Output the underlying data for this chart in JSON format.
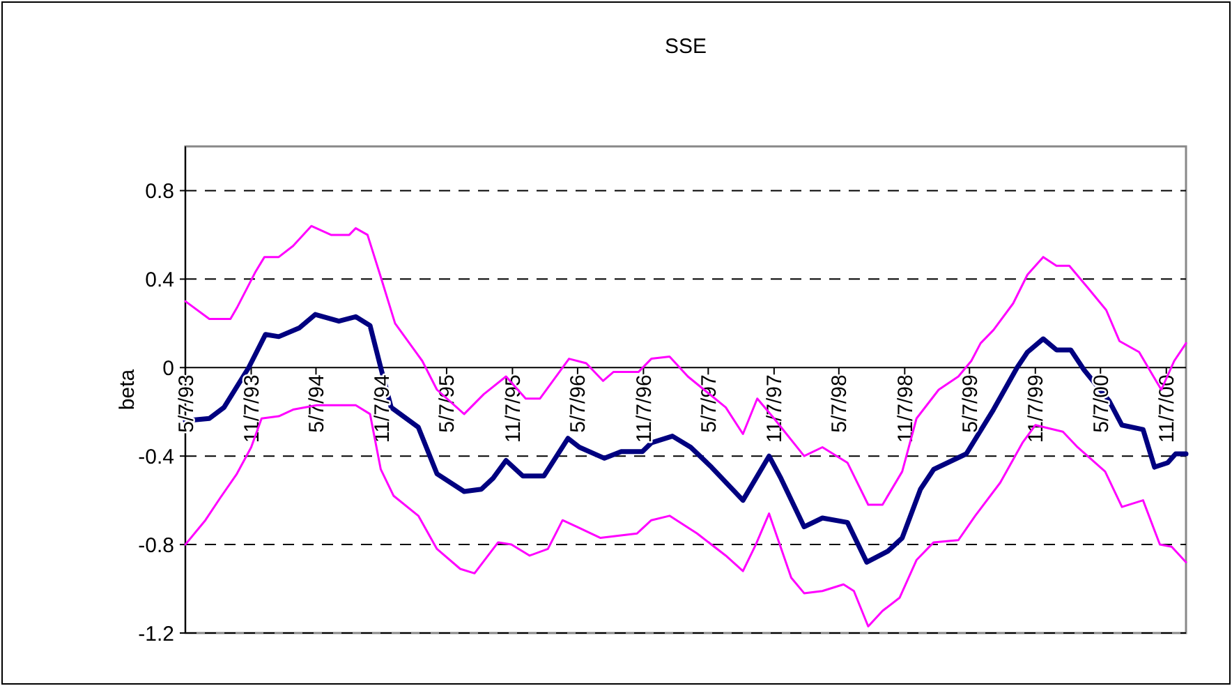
{
  "chart_data": {
    "type": "line",
    "title": "SSE",
    "ylabel": "beta",
    "xlim": [
      "1993-05-07",
      "2001-01-01"
    ],
    "xticks": [
      {
        "value": "1993-05-07",
        "label": "5/7/93"
      },
      {
        "value": "1993-11-07",
        "label": "11/7/93"
      },
      {
        "value": "1994-05-07",
        "label": "5/7/94"
      },
      {
        "value": "1994-11-07",
        "label": "11/7/94"
      },
      {
        "value": "1995-05-07",
        "label": "5/7/95"
      },
      {
        "value": "1995-11-07",
        "label": "11/7/95"
      },
      {
        "value": "1996-05-07",
        "label": "5/7/96"
      },
      {
        "value": "1996-11-07",
        "label": "11/7/96"
      },
      {
        "value": "1997-05-07",
        "label": "5/7/97"
      },
      {
        "value": "1997-11-07",
        "label": "11/7/97"
      },
      {
        "value": "1998-05-07",
        "label": "5/7/98"
      },
      {
        "value": "1998-11-07",
        "label": "11/7/98"
      },
      {
        "value": "1999-05-07",
        "label": "5/7/99"
      },
      {
        "value": "1999-11-07",
        "label": "11/7/99"
      },
      {
        "value": "2000-05-07",
        "label": "5/7/00"
      },
      {
        "value": "2000-11-07",
        "label": "11/7/00"
      }
    ],
    "ylim": [
      -1.2,
      1.0
    ],
    "yticks": [
      -1.2,
      -0.8,
      -0.4,
      0,
      0.4,
      0.8
    ],
    "grid": "y",
    "marker": "none",
    "line_style": "solid",
    "series": [
      {
        "color": "#ff00ff",
        "x": [
          "1993-05-07",
          "1993-07-13",
          "1993-09-10",
          "1993-09-28",
          "1993-11-18",
          "1993-12-14",
          "1994-01-23",
          "1994-03-04",
          "1994-04-24",
          "1994-06-18",
          "1994-08-08",
          "1994-08-26",
          "1994-09-28",
          "1994-11-04",
          "1994-12-14",
          "1995-02-28",
          "1995-04-10",
          "1995-06-25",
          "1995-08-19",
          "1995-10-20",
          "1995-12-14",
          "1996-01-23",
          "1996-04-13",
          "1996-05-31",
          "1996-07-17",
          "1996-08-15",
          "1996-10-24",
          "1996-11-29",
          "1997-01-19",
          "1997-03-11",
          "1997-06-25",
          "1997-08-12",
          "1997-09-21",
          "1997-11-07",
          "1998-01-30",
          "1998-03-22",
          "1998-05-31",
          "1998-07-28",
          "1998-09-06",
          "1998-10-31",
          "1998-12-10",
          "1999-02-10",
          "1999-04-06",
          "1999-05-12",
          "1999-06-07",
          "1999-07-13",
          "1999-09-06",
          "1999-10-16",
          "1999-11-29",
          "2000-01-05",
          "2000-02-10",
          "2000-04-02",
          "2000-05-23",
          "2000-06-29",
          "2000-08-23",
          "2000-10-02",
          "2000-10-24",
          "2000-11-29",
          "2001-01-01"
        ],
        "values": [
          0.3,
          0.22,
          0.22,
          0.27,
          0.43,
          0.5,
          0.5,
          0.55,
          0.64,
          0.6,
          0.6,
          0.63,
          0.6,
          0.41,
          0.2,
          0.03,
          -0.1,
          -0.21,
          -0.12,
          -0.04,
          -0.14,
          -0.14,
          0.04,
          0.02,
          -0.06,
          -0.02,
          -0.02,
          0.04,
          0.05,
          -0.04,
          -0.18,
          -0.3,
          -0.14,
          -0.23,
          -0.4,
          -0.36,
          -0.43,
          -0.62,
          -0.62,
          -0.47,
          -0.23,
          -0.1,
          -0.04,
          0.03,
          0.11,
          0.17,
          0.29,
          0.42,
          0.5,
          0.46,
          0.46,
          0.36,
          0.26,
          0.12,
          0.07,
          -0.04,
          -0.1,
          0.03,
          0.11
        ]
      },
      {
        "color": "#ff00ff",
        "x": [
          "1993-05-07",
          "1993-07-02",
          "1993-08-12",
          "1993-09-28",
          "1993-11-07",
          "1993-12-06",
          "1994-01-23",
          "1994-03-04",
          "1994-05-09",
          "1994-07-10",
          "1994-08-26",
          "1994-10-05",
          "1994-11-04",
          "1994-12-10",
          "1995-02-17",
          "1995-04-10",
          "1995-06-14",
          "1995-07-24",
          "1995-09-28",
          "1995-11-04",
          "1995-12-25",
          "1996-02-14",
          "1996-03-26",
          "1996-05-05",
          "1996-07-10",
          "1996-10-20",
          "1996-11-29",
          "1997-01-19",
          "1997-04-06",
          "1997-06-25",
          "1997-08-12",
          "1997-09-17",
          "1997-10-24",
          "1997-12-25",
          "1998-01-30",
          "1998-03-22",
          "1998-05-20",
          "1998-06-18",
          "1998-07-28",
          "1998-09-06",
          "1998-10-24",
          "1998-12-10",
          "1999-01-27",
          "1999-04-06",
          "1999-05-23",
          "1999-08-01",
          "1999-10-02",
          "1999-11-07",
          "2000-01-23",
          "2000-03-04",
          "2000-05-20",
          "2000-07-06",
          "2000-09-03",
          "2000-10-20",
          "2000-11-22",
          "2001-01-01"
        ],
        "values": [
          -0.8,
          -0.69,
          -0.59,
          -0.48,
          -0.36,
          -0.23,
          -0.22,
          -0.19,
          -0.17,
          -0.17,
          -0.17,
          -0.21,
          -0.46,
          -0.58,
          -0.67,
          -0.82,
          -0.91,
          -0.93,
          -0.79,
          -0.8,
          -0.85,
          -0.82,
          -0.69,
          -0.72,
          -0.77,
          -0.75,
          -0.69,
          -0.67,
          -0.75,
          -0.85,
          -0.92,
          -0.8,
          -0.66,
          -0.95,
          -1.02,
          -1.01,
          -0.98,
          -1.01,
          -1.17,
          -1.1,
          -1.04,
          -0.87,
          -0.79,
          -0.78,
          -0.67,
          -0.52,
          -0.34,
          -0.26,
          -0.29,
          -0.36,
          -0.47,
          -0.63,
          -0.6,
          -0.8,
          -0.81,
          -0.88
        ]
      },
      {
        "color": "#000080",
        "x": [
          "1993-05-07",
          "1993-07-13",
          "1993-08-23",
          "1993-10-31",
          "1993-12-17",
          "1994-01-23",
          "1994-03-22",
          "1994-05-05",
          "1994-07-10",
          "1994-08-26",
          "1994-10-05",
          "1994-11-04",
          "1994-12-03",
          "1995-02-17",
          "1995-04-10",
          "1995-06-25",
          "1995-08-12",
          "1995-09-14",
          "1995-10-20",
          "1995-12-06",
          "1996-02-03",
          "1996-04-10",
          "1996-05-12",
          "1996-07-21",
          "1996-09-06",
          "1996-11-04",
          "1996-11-29",
          "1997-01-27",
          "1997-03-19",
          "1997-05-16",
          "1997-08-12",
          "1997-10-24",
          "1997-11-26",
          "1998-01-30",
          "1998-03-22",
          "1998-05-31",
          "1998-07-24",
          "1998-09-21",
          "1998-10-31",
          "1998-12-21",
          "1999-01-27",
          "1999-04-28",
          "1999-07-13",
          "1999-09-17",
          "1999-10-16",
          "1999-11-29",
          "2000-01-05",
          "2000-02-14",
          "2000-03-22",
          "2000-05-31",
          "2000-07-06",
          "2000-09-03",
          "2000-10-05",
          "2000-11-11",
          "2000-12-03",
          "2001-01-01"
        ],
        "values": [
          -0.24,
          -0.23,
          -0.18,
          0,
          0.15,
          0.14,
          0.18,
          0.24,
          0.21,
          0.23,
          0.19,
          0,
          -0.18,
          -0.27,
          -0.48,
          -0.56,
          -0.55,
          -0.5,
          -0.42,
          -0.49,
          -0.49,
          -0.32,
          -0.36,
          -0.41,
          -0.38,
          -0.38,
          -0.34,
          -0.31,
          -0.36,
          -0.45,
          -0.6,
          -0.4,
          -0.5,
          -0.72,
          -0.68,
          -0.7,
          -0.88,
          -0.83,
          -0.77,
          -0.55,
          -0.46,
          -0.39,
          -0.19,
          0,
          0.07,
          0.13,
          0.08,
          0.08,
          -0.01,
          -0.15,
          -0.26,
          -0.28,
          -0.45,
          -0.43,
          -0.39,
          -0.39
        ]
      }
    ]
  }
}
